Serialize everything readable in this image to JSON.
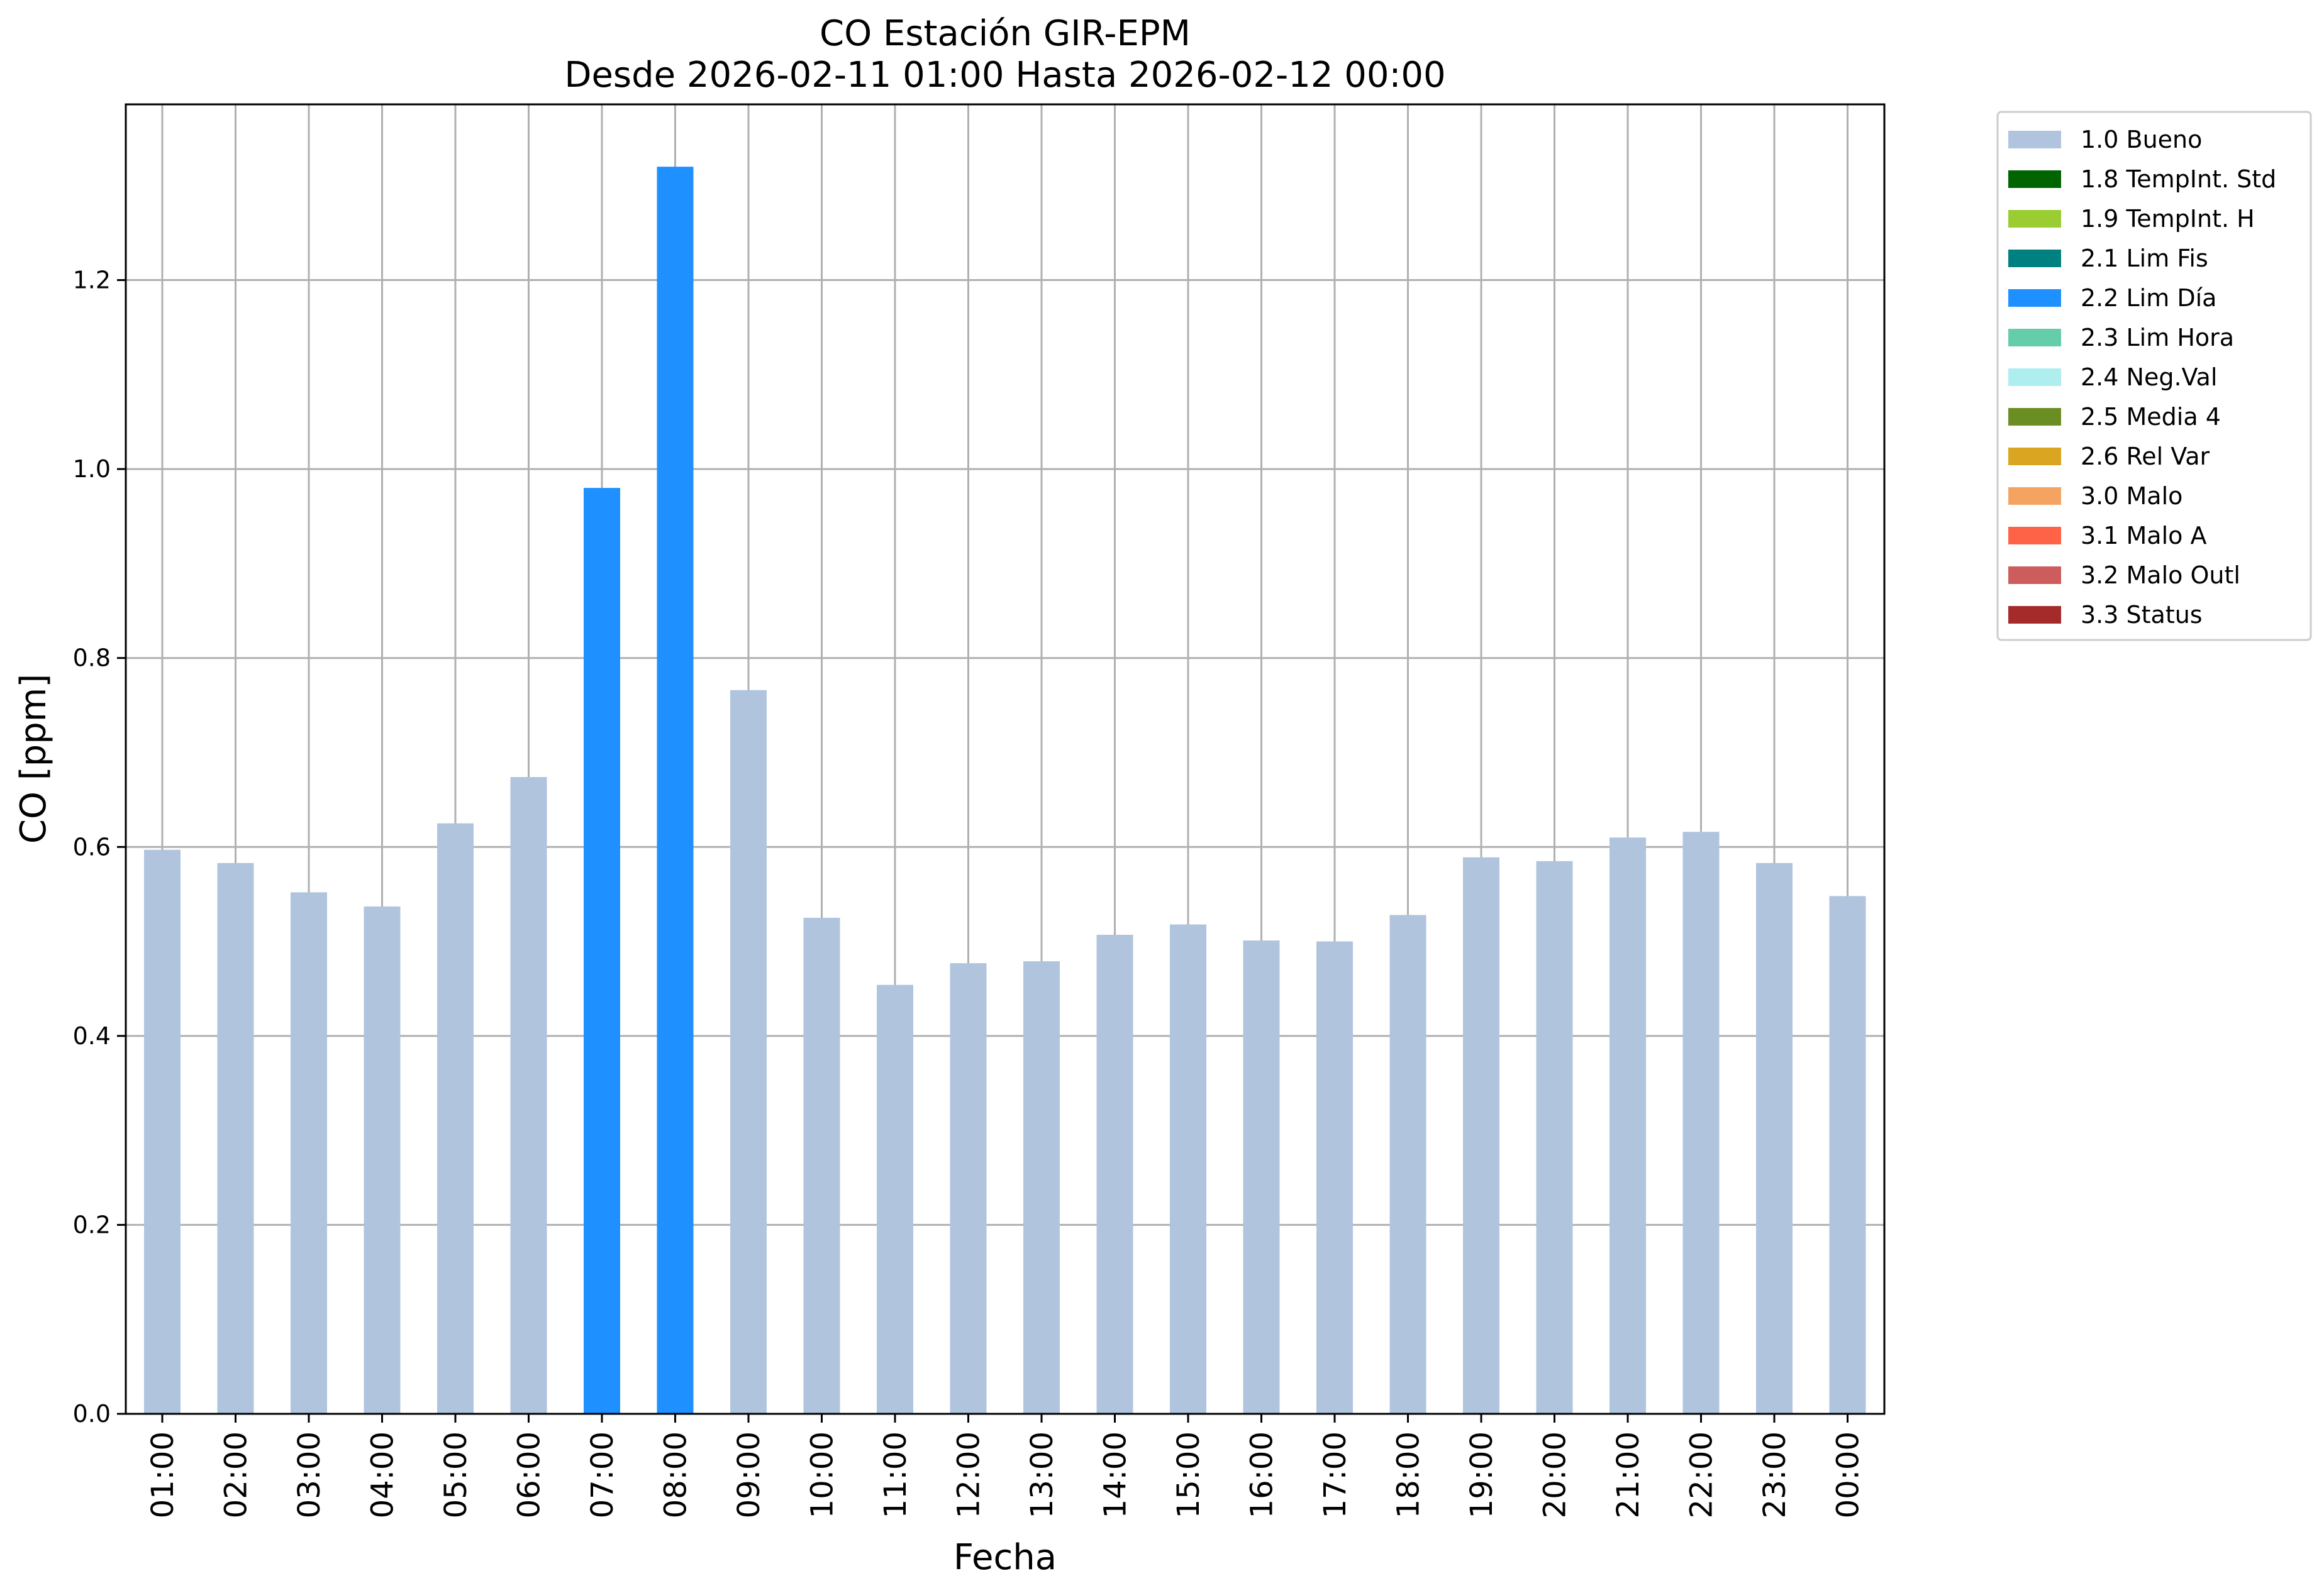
{
  "chart_data": {
    "type": "bar",
    "title_line1": "CO Estación GIR-EPM",
    "title_line2": "Desde 2026-02-11 01:00 Hasta 2026-02-12 00:00",
    "xlabel": "Fecha",
    "ylabel": "CO [ppm]",
    "ylim": [
      0,
      1.386
    ],
    "yticks": [
      0.0,
      0.2,
      0.4,
      0.6,
      0.8,
      1.0,
      1.2
    ],
    "ytick_labels": [
      "0.0",
      "0.2",
      "0.4",
      "0.6",
      "0.8",
      "1.0",
      "1.2"
    ],
    "grid": true,
    "legend_position": "outside-right-top",
    "categories": [
      "01:00",
      "02:00",
      "03:00",
      "04:00",
      "05:00",
      "06:00",
      "07:00",
      "08:00",
      "09:00",
      "10:00",
      "11:00",
      "12:00",
      "13:00",
      "14:00",
      "15:00",
      "16:00",
      "17:00",
      "18:00",
      "19:00",
      "20:00",
      "21:00",
      "22:00",
      "23:00",
      "00:00"
    ],
    "values": [
      0.597,
      0.583,
      0.552,
      0.537,
      0.625,
      0.674,
      0.98,
      1.32,
      0.766,
      0.525,
      0.454,
      0.477,
      0.479,
      0.507,
      0.518,
      0.501,
      0.5,
      0.528,
      0.589,
      0.585,
      0.61,
      0.616,
      0.583,
      0.548
    ],
    "flags": [
      "1.0 Bueno",
      "1.0 Bueno",
      "1.0 Bueno",
      "1.0 Bueno",
      "1.0 Bueno",
      "1.0 Bueno",
      "2.2 Lim Día",
      "2.2 Lim Día",
      "1.0 Bueno",
      "1.0 Bueno",
      "1.0 Bueno",
      "1.0 Bueno",
      "1.0 Bueno",
      "1.0 Bueno",
      "1.0 Bueno",
      "1.0 Bueno",
      "1.0 Bueno",
      "1.0 Bueno",
      "1.0 Bueno",
      "1.0 Bueno",
      "1.0 Bueno",
      "1.0 Bueno",
      "1.0 Bueno",
      "1.0 Bueno"
    ],
    "legend": [
      {
        "label": "1.0 Bueno",
        "color": "#b0c4de"
      },
      {
        "label": "1.8 TempInt. Std",
        "color": "#006400"
      },
      {
        "label": "1.9 TempInt. H",
        "color": "#9acd32"
      },
      {
        "label": "2.1 Lim Fis",
        "color": "#008080"
      },
      {
        "label": "2.2 Lim Día",
        "color": "#1e90ff"
      },
      {
        "label": "2.3 Lim Hora",
        "color": "#66cdaa"
      },
      {
        "label": "2.4 Neg.Val",
        "color": "#afeeee"
      },
      {
        "label": "2.5 Media 4",
        "color": "#6b8e23"
      },
      {
        "label": "2.6 Rel Var",
        "color": "#daa520"
      },
      {
        "label": "3.0 Malo",
        "color": "#f4a460"
      },
      {
        "label": "3.1 Malo A",
        "color": "#ff6347"
      },
      {
        "label": "3.2 Malo Outl",
        "color": "#cd5c5c"
      },
      {
        "label": "3.3 Status",
        "color": "#a52a2a"
      }
    ]
  }
}
